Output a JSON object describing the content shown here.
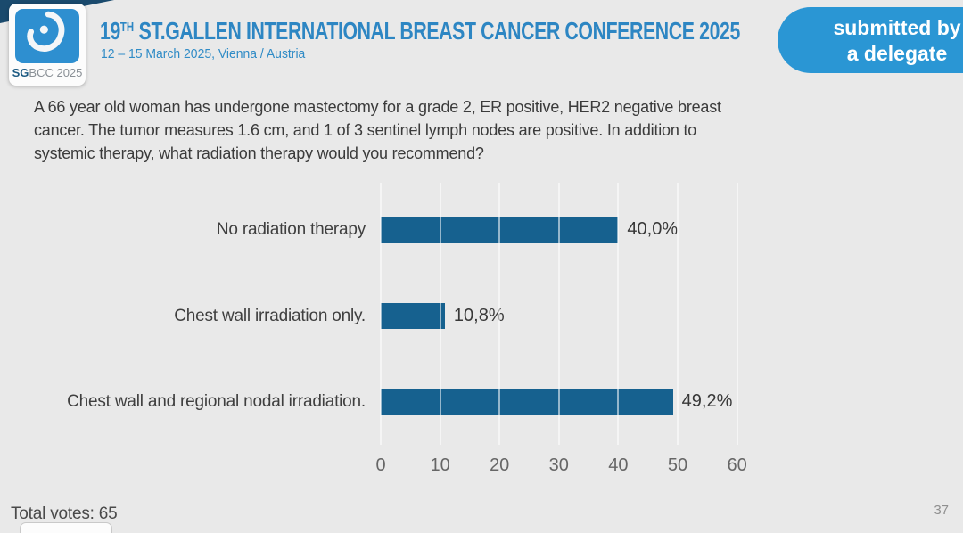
{
  "header": {
    "logo": {
      "abbr_bold": "SG",
      "abbr_rest": "BCC 2025"
    },
    "title_num": "19",
    "title_sup": "TH",
    "title_rest": " ST.GALLEN INTERNATIONAL BREAST CANCER CONFERENCE 2025",
    "subtitle": "12 – 15 March 2025, Vienna / Austria",
    "badge_line1": "submitted by",
    "badge_line2": "a delegate"
  },
  "question": {
    "lines": [
      "A 66 year old woman has undergone mastectomy for a grade 2, ER positive, HER2 negative breast",
      "cancer.  The tumor measures 1.6 cm, and 1 of 3 sentinel lymph nodes are positive.  In addition to",
      "systemic therapy, what radiation therapy would you recommend?"
    ]
  },
  "chart_data": {
    "type": "bar",
    "orientation": "horizontal",
    "categories": [
      "No radiation therapy",
      "Chest wall irradiation only.",
      "Chest wall and regional nodal irradiation."
    ],
    "values": [
      40.0,
      10.8,
      49.2
    ],
    "value_labels": [
      "40,0%",
      "10,8%",
      "49,2%"
    ],
    "xlim": [
      0,
      60
    ],
    "xticks": [
      0,
      10,
      20,
      30,
      40,
      50,
      60
    ],
    "title": "",
    "xlabel": "",
    "ylabel": "",
    "grid": true,
    "legend_position": "none",
    "bar_color": "#16618f"
  },
  "footer": {
    "total_votes": "Total votes: 65",
    "page_number": "37"
  },
  "colors": {
    "background": "#e9e9e9",
    "accent_blue": "#2d86c3",
    "badge_blue": "#2a96d4",
    "bar_blue": "#16618f",
    "corner_navy": "#1a4a6d"
  }
}
